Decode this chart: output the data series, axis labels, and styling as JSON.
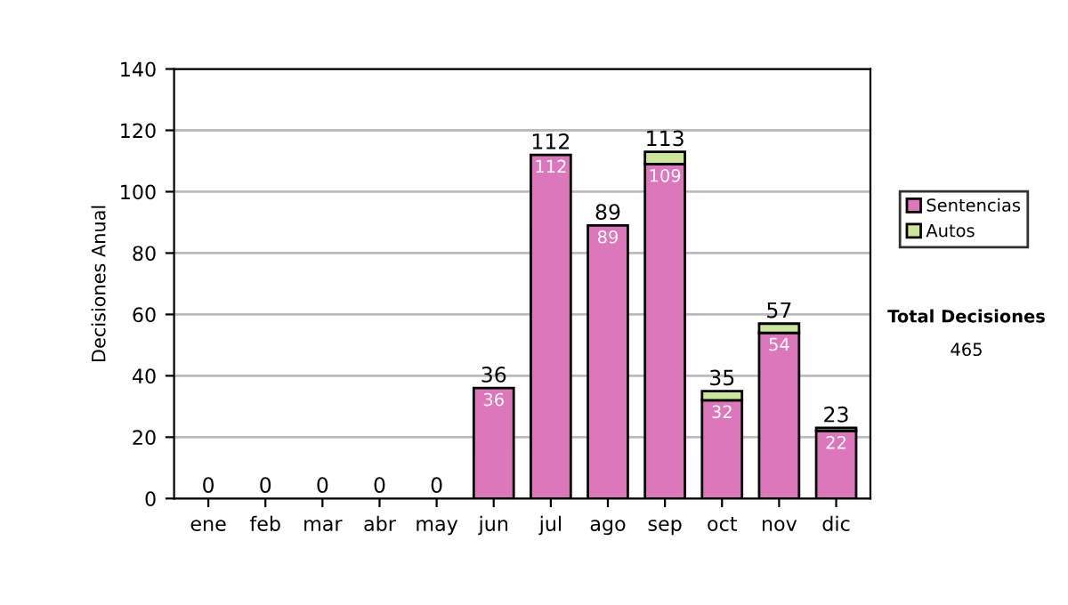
{
  "chart_data": {
    "type": "bar",
    "stacked": true,
    "ylabel": "Decisiones Anual",
    "categories": [
      "ene",
      "feb",
      "mar",
      "abr",
      "may",
      "jun",
      "jul",
      "ago",
      "sep",
      "oct",
      "nov",
      "dic"
    ],
    "series": [
      {
        "name": "Sentencias",
        "color": "#dd77bb",
        "values": [
          0,
          0,
          0,
          0,
          0,
          36,
          112,
          89,
          109,
          32,
          54,
          22
        ],
        "value_labels": [
          null,
          null,
          null,
          null,
          null,
          "36",
          "112",
          "89",
          "109",
          "32",
          "54",
          "22"
        ]
      },
      {
        "name": "Autos",
        "color": "#cce699",
        "values": [
          0,
          0,
          0,
          0,
          0,
          0,
          0,
          0,
          4,
          3,
          3,
          1
        ]
      }
    ],
    "totals": [
      "0",
      "0",
      "0",
      "0",
      "0",
      "36",
      "112",
      "89",
      "113",
      "35",
      "57",
      "23"
    ],
    "ylim": [
      0,
      140
    ],
    "yticks": [
      0,
      20,
      40,
      60,
      80,
      100,
      120,
      140
    ],
    "grid": "y",
    "legend": "right",
    "annotations": [
      "Total Decisiones",
      "465"
    ]
  }
}
